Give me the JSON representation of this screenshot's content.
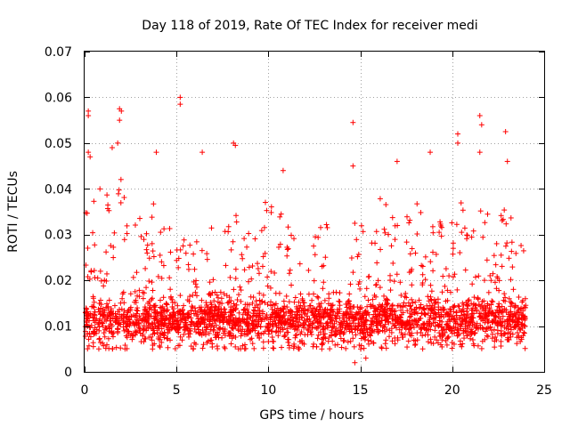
{
  "chart_data": {
    "type": "scatter",
    "title": "Day 118 of 2019, Rate Of TEC Index for receiver medi",
    "xlabel": "GPS time / hours",
    "ylabel": "ROTI / TECUs",
    "xlim": [
      0,
      25
    ],
    "ylim": [
      0,
      0.07
    ],
    "x_ticks": [
      0,
      5,
      10,
      15,
      20,
      25
    ],
    "x_tick_labels": [
      "0",
      "5",
      "10",
      "15",
      "20",
      "25"
    ],
    "y_ticks": [
      0,
      0.01,
      0.02,
      0.03,
      0.04,
      0.05,
      0.06,
      0.07
    ],
    "y_tick_labels": [
      "0",
      "0.01",
      "0.02",
      "0.03",
      "0.04",
      "0.05",
      "0.06",
      "0.07"
    ],
    "grid": true,
    "marker": "plus",
    "color": "#ff0000",
    "series": [
      {
        "name": "ROTI",
        "envelope_x": [
          0.0,
          0.5,
          1.0,
          1.5,
          2.0,
          2.5,
          3.0,
          3.5,
          4.0,
          4.5,
          5.0,
          5.5,
          6.0,
          6.5,
          7.0,
          7.5,
          8.0,
          8.5,
          9.0,
          9.5,
          10.0,
          10.5,
          11.0,
          11.5,
          12.0,
          12.5,
          13.0,
          13.5,
          14.0,
          14.5,
          15.0,
          15.5,
          16.0,
          16.5,
          17.0,
          17.5,
          18.0,
          18.5,
          19.0,
          19.5,
          20.0,
          20.5,
          21.0,
          21.5,
          22.0,
          22.5,
          23.0,
          23.5,
          24.0
        ],
        "envelope_y": [
          0.04,
          0.038,
          0.042,
          0.046,
          0.048,
          0.04,
          0.036,
          0.034,
          0.042,
          0.038,
          0.032,
          0.036,
          0.034,
          0.03,
          0.032,
          0.028,
          0.038,
          0.032,
          0.03,
          0.036,
          0.04,
          0.034,
          0.04,
          0.032,
          0.03,
          0.032,
          0.034,
          0.03,
          0.032,
          0.034,
          0.034,
          0.032,
          0.04,
          0.036,
          0.034,
          0.04,
          0.038,
          0.034,
          0.04,
          0.034,
          0.036,
          0.038,
          0.036,
          0.04,
          0.036,
          0.036,
          0.038,
          0.03,
          0.028
        ],
        "typical_range": [
          0.005,
          0.015
        ],
        "outliers": [
          {
            "x": 0.2,
            "y": 0.057
          },
          {
            "x": 0.2,
            "y": 0.056
          },
          {
            "x": 0.2,
            "y": 0.048
          },
          {
            "x": 0.3,
            "y": 0.047
          },
          {
            "x": 1.5,
            "y": 0.049
          },
          {
            "x": 1.9,
            "y": 0.0575
          },
          {
            "x": 2.0,
            "y": 0.057
          },
          {
            "x": 1.9,
            "y": 0.055
          },
          {
            "x": 1.8,
            "y": 0.05
          },
          {
            "x": 3.9,
            "y": 0.048
          },
          {
            "x": 5.2,
            "y": 0.06
          },
          {
            "x": 5.2,
            "y": 0.0585
          },
          {
            "x": 6.4,
            "y": 0.048
          },
          {
            "x": 8.1,
            "y": 0.05
          },
          {
            "x": 8.2,
            "y": 0.0495
          },
          {
            "x": 10.8,
            "y": 0.044
          },
          {
            "x": 14.6,
            "y": 0.0545
          },
          {
            "x": 14.6,
            "y": 0.045
          },
          {
            "x": 17.0,
            "y": 0.046
          },
          {
            "x": 18.8,
            "y": 0.048
          },
          {
            "x": 20.3,
            "y": 0.052
          },
          {
            "x": 20.3,
            "y": 0.05
          },
          {
            "x": 21.5,
            "y": 0.056
          },
          {
            "x": 21.6,
            "y": 0.054
          },
          {
            "x": 21.5,
            "y": 0.048
          },
          {
            "x": 22.9,
            "y": 0.0525
          },
          {
            "x": 23.0,
            "y": 0.046
          },
          {
            "x": 15.3,
            "y": 0.003
          },
          {
            "x": 14.7,
            "y": 0.002
          }
        ]
      }
    ]
  }
}
